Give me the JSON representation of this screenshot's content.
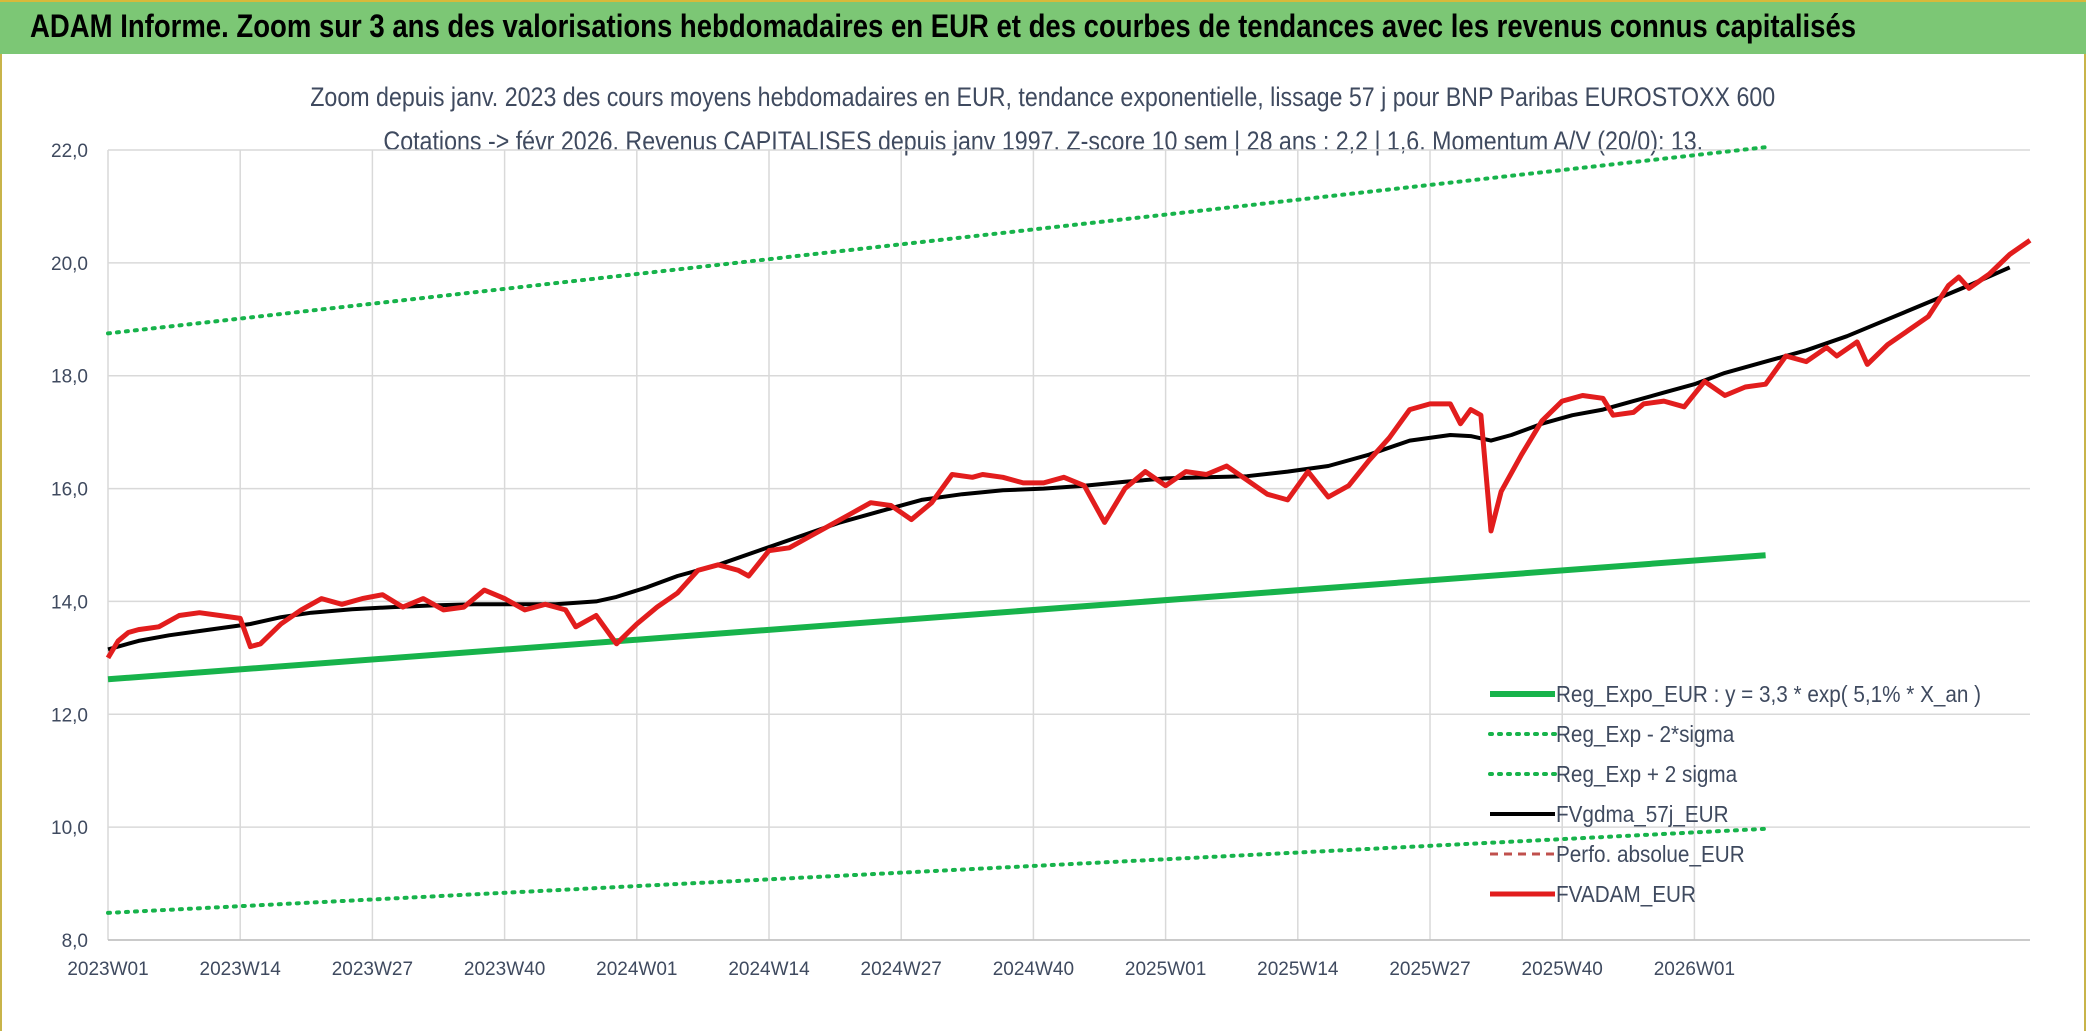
{
  "header": {
    "title": "ADAM Informe. Zoom sur 3 ans des valorisations hebdomadaires en EUR et des courbes de tendances avec les revenus connus capitalisés"
  },
  "chart_data": {
    "type": "line",
    "title_line1": "Zoom depuis janv. 2023 des cours moyens hebdomadaires en EUR, tendance exponentielle, lissage 57 j pour BNP Paribas EUROSTOXX 600",
    "title_line2": "Cotations -> févr 2026. Revenus CAPITALISES depuis janv 1997. Z-score 10 sem | 28 ans : 2,2 | 1,6. Momentum A/V (20/0): 13.",
    "x_ticks": [
      "2023W01",
      "2023W14",
      "2023W27",
      "2023W40",
      "2024W01",
      "2024W14",
      "2024W27",
      "2024W40",
      "2025W01",
      "2025W14",
      "2025W27",
      "2025W40",
      "2026W01"
    ],
    "x_range_weeks": [
      0,
      163
    ],
    "ylim": [
      8,
      22
    ],
    "y_ticks": [
      "8,0",
      "10,0",
      "12,0",
      "14,0",
      "16,0",
      "18,0",
      "20,0",
      "22,0"
    ],
    "grid": true,
    "legend_position": "bottom-right",
    "series": [
      {
        "name": "Reg_Expo_EUR : y = 3,3 * exp( 5,1% *  X_an )",
        "color": "#17b34b",
        "style": "solid-thick",
        "points": [
          [
            0,
            12.62
          ],
          [
            163,
            14.82
          ]
        ]
      },
      {
        "name": "Reg_Exp - 2*sigma",
        "color": "#17b34b",
        "style": "dotted",
        "points": [
          [
            0,
            8.48
          ],
          [
            163,
            9.97
          ]
        ]
      },
      {
        "name": "Reg_Exp + 2 sigma",
        "color": "#17b34b",
        "style": "dotted",
        "points": [
          [
            0,
            18.75
          ],
          [
            163,
            22.05
          ]
        ]
      },
      {
        "name": "FVgdma_57j_EUR",
        "color": "#000000",
        "style": "solid",
        "points": [
          [
            0,
            13.15
          ],
          [
            3,
            13.3
          ],
          [
            6,
            13.4
          ],
          [
            10,
            13.5
          ],
          [
            14,
            13.6
          ],
          [
            17,
            13.72
          ],
          [
            20,
            13.8
          ],
          [
            24,
            13.86
          ],
          [
            28,
            13.9
          ],
          [
            32,
            13.93
          ],
          [
            36,
            13.95
          ],
          [
            40,
            13.95
          ],
          [
            44,
            13.95
          ],
          [
            48,
            14.0
          ],
          [
            50,
            14.08
          ],
          [
            53,
            14.25
          ],
          [
            56,
            14.45
          ],
          [
            60,
            14.65
          ],
          [
            64,
            14.9
          ],
          [
            68,
            15.15
          ],
          [
            72,
            15.4
          ],
          [
            76,
            15.6
          ],
          [
            80,
            15.8
          ],
          [
            84,
            15.9
          ],
          [
            88,
            15.97
          ],
          [
            92,
            16.0
          ],
          [
            96,
            16.05
          ],
          [
            100,
            16.12
          ],
          [
            104,
            16.18
          ],
          [
            108,
            16.2
          ],
          [
            112,
            16.22
          ],
          [
            116,
            16.3
          ],
          [
            120,
            16.4
          ],
          [
            124,
            16.6
          ],
          [
            128,
            16.85
          ],
          [
            132,
            16.95
          ],
          [
            134,
            16.93
          ],
          [
            136,
            16.85
          ],
          [
            138,
            16.95
          ],
          [
            141,
            17.15
          ],
          [
            144,
            17.3
          ],
          [
            147,
            17.4
          ],
          [
            150,
            17.55
          ],
          [
            153,
            17.7
          ],
          [
            156,
            17.85
          ],
          [
            159,
            18.05
          ],
          [
            163,
            18.25
          ],
          [
            167,
            18.45
          ],
          [
            171,
            18.7
          ],
          [
            175,
            19.0
          ],
          [
            179,
            19.3
          ],
          [
            183,
            19.6
          ],
          [
            187,
            19.92
          ]
        ]
      },
      {
        "name": "Perfo. absolue_EUR",
        "color": "#c0504d",
        "style": "dashed",
        "points": []
      },
      {
        "name": "FVADAM_EUR",
        "color": "#e21d1d",
        "style": "solid-thick",
        "points": [
          [
            0,
            13.0
          ],
          [
            1,
            13.3
          ],
          [
            2,
            13.45
          ],
          [
            3,
            13.5
          ],
          [
            5,
            13.55
          ],
          [
            7,
            13.75
          ],
          [
            9,
            13.8
          ],
          [
            11,
            13.75
          ],
          [
            13,
            13.7
          ],
          [
            14,
            13.2
          ],
          [
            15,
            13.25
          ],
          [
            17,
            13.6
          ],
          [
            19,
            13.85
          ],
          [
            21,
            14.05
          ],
          [
            23,
            13.95
          ],
          [
            25,
            14.05
          ],
          [
            27,
            14.12
          ],
          [
            29,
            13.9
          ],
          [
            31,
            14.05
          ],
          [
            33,
            13.85
          ],
          [
            35,
            13.9
          ],
          [
            37,
            14.2
          ],
          [
            39,
            14.05
          ],
          [
            41,
            13.85
          ],
          [
            43,
            13.95
          ],
          [
            45,
            13.85
          ],
          [
            46,
            13.55
          ],
          [
            48,
            13.75
          ],
          [
            50,
            13.25
          ],
          [
            52,
            13.6
          ],
          [
            54,
            13.9
          ],
          [
            56,
            14.15
          ],
          [
            58,
            14.55
          ],
          [
            60,
            14.65
          ],
          [
            62,
            14.55
          ],
          [
            63,
            14.45
          ],
          [
            65,
            14.9
          ],
          [
            67,
            14.95
          ],
          [
            69,
            15.15
          ],
          [
            71,
            15.35
          ],
          [
            73,
            15.55
          ],
          [
            75,
            15.75
          ],
          [
            77,
            15.7
          ],
          [
            79,
            15.45
          ],
          [
            81,
            15.75
          ],
          [
            83,
            16.25
          ],
          [
            85,
            16.2
          ],
          [
            86,
            16.25
          ],
          [
            88,
            16.2
          ],
          [
            90,
            16.1
          ],
          [
            92,
            16.1
          ],
          [
            94,
            16.2
          ],
          [
            96,
            16.05
          ],
          [
            98,
            15.4
          ],
          [
            100,
            16.0
          ],
          [
            102,
            16.3
          ],
          [
            104,
            16.05
          ],
          [
            106,
            16.3
          ],
          [
            108,
            16.25
          ],
          [
            110,
            16.4
          ],
          [
            112,
            16.15
          ],
          [
            114,
            15.9
          ],
          [
            116,
            15.8
          ],
          [
            118,
            16.3
          ],
          [
            120,
            15.85
          ],
          [
            122,
            16.05
          ],
          [
            124,
            16.5
          ],
          [
            126,
            16.9
          ],
          [
            128,
            17.4
          ],
          [
            130,
            17.5
          ],
          [
            132,
            17.5
          ],
          [
            133,
            17.15
          ],
          [
            134,
            17.4
          ],
          [
            135,
            17.3
          ],
          [
            136,
            15.25
          ],
          [
            137,
            15.95
          ],
          [
            139,
            16.6
          ],
          [
            141,
            17.2
          ],
          [
            143,
            17.55
          ],
          [
            145,
            17.65
          ],
          [
            147,
            17.6
          ],
          [
            148,
            17.3
          ],
          [
            150,
            17.35
          ],
          [
            151,
            17.5
          ],
          [
            153,
            17.55
          ],
          [
            155,
            17.45
          ],
          [
            157,
            17.9
          ],
          [
            159,
            17.65
          ],
          [
            161,
            17.8
          ],
          [
            163,
            17.85
          ],
          [
            165,
            18.35
          ],
          [
            167,
            18.25
          ],
          [
            169,
            18.5
          ],
          [
            170,
            18.35
          ],
          [
            172,
            18.6
          ],
          [
            173,
            18.2
          ],
          [
            175,
            18.55
          ],
          [
            177,
            18.8
          ],
          [
            179,
            19.05
          ],
          [
            181,
            19.6
          ],
          [
            182,
            19.75
          ],
          [
            183,
            19.55
          ],
          [
            185,
            19.8
          ],
          [
            187,
            20.15
          ],
          [
            189,
            20.4
          ]
        ]
      }
    ]
  }
}
